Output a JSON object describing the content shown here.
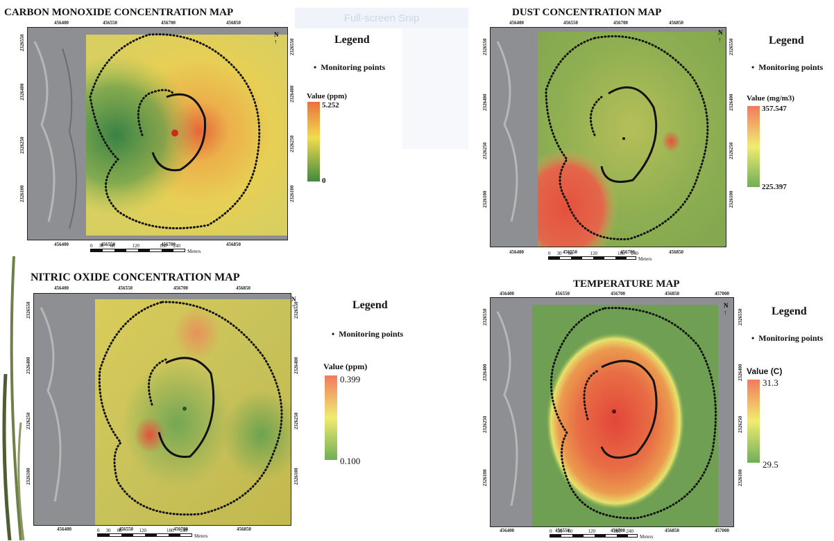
{
  "watermark": "Full-screen Snip",
  "legend_common": {
    "title": "Legend",
    "point_label": "Monitoring points"
  },
  "scale_bar": {
    "ticks": [
      "0",
      "30",
      "60",
      "120",
      "180",
      "240"
    ],
    "unit": "Meters"
  },
  "north": "N",
  "maps": [
    {
      "title": "CARBON MONOXIDE CONCENTRATION MAP",
      "x_ticks": [
        "456400",
        "456550",
        "456700",
        "456850"
      ],
      "y_ticks": [
        "2326550",
        "2326400",
        "2326250",
        "2326100"
      ],
      "value_title": "Value (ppm)",
      "max": "5.252",
      "min": "0",
      "colors": [
        "#e8723d",
        "#f2dc4e",
        "#3f8a3e"
      ]
    },
    {
      "title": "DUST CONCENTRATION MAP",
      "x_ticks": [
        "456400",
        "456550",
        "456700",
        "456850"
      ],
      "y_ticks": [
        "2326550",
        "2326400",
        "2326250",
        "2326100"
      ],
      "value_title": "Value (mg/m3)",
      "max": "357.547",
      "min": "225.397",
      "colors": [
        "#f17a5e",
        "#f1ec70",
        "#6fae58"
      ]
    },
    {
      "title": "NITRIC OXIDE CONCENTRATION MAP",
      "x_ticks": [
        "456400",
        "456550",
        "456700",
        "456850"
      ],
      "y_ticks": [
        "2326550",
        "2326400",
        "2326250",
        "2326100"
      ],
      "value_title": "Value (ppm)",
      "max": "0.399",
      "min": "0.100",
      "colors": [
        "#f17a5e",
        "#f1ec70",
        "#6fae58"
      ]
    },
    {
      "title": "TEMPERATURE MAP",
      "x_ticks": [
        "456400",
        "456550",
        "456700",
        "456850",
        "457000"
      ],
      "y_ticks": [
        "2326550",
        "2326400",
        "2326250",
        "2326100"
      ],
      "value_title": "Value (C)",
      "max": "31.3",
      "min": "29.5",
      "colors": [
        "#f17a5e",
        "#f1ec70",
        "#6fae58"
      ]
    }
  ]
}
